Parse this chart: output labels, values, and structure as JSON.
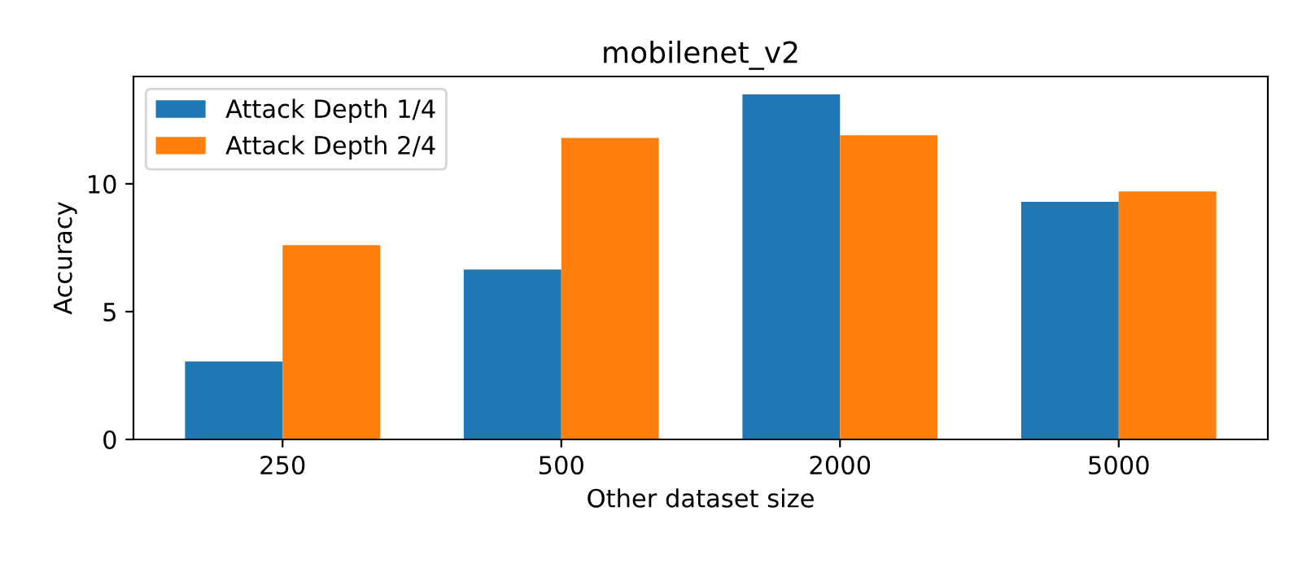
{
  "chart_data": {
    "type": "bar",
    "title": "mobilenet_v2",
    "xlabel": "Other dataset size",
    "ylabel": "Accuracy",
    "categories": [
      "250",
      "500",
      "2000",
      "5000"
    ],
    "series": [
      {
        "name": "Attack Depth 1/4",
        "color": "#1f77b4",
        "values": [
          3.05,
          6.65,
          13.5,
          9.3
        ]
      },
      {
        "name": "Attack Depth 2/4",
        "color": "#ff7f0e",
        "values": [
          7.6,
          11.8,
          11.9,
          9.7
        ]
      }
    ],
    "ylim": [
      0,
      14.2
    ],
    "yticks": [
      0,
      5,
      10
    ],
    "legend": "top left",
    "grid": false
  }
}
